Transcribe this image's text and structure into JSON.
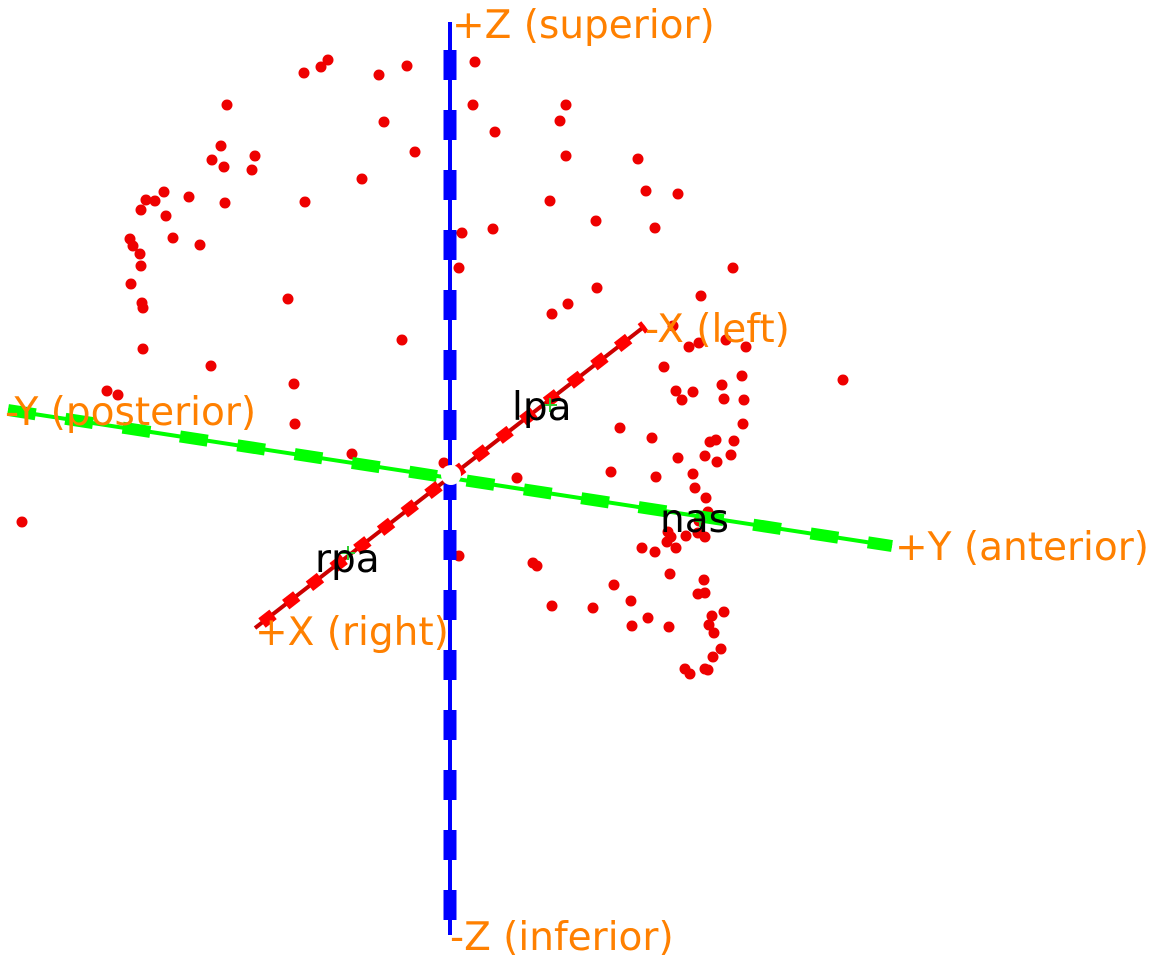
{
  "axes": {
    "z_pos": "+Z (superior)",
    "z_neg": "-Z (inferior)",
    "x_neg": "-X (left)",
    "x_pos": "+X (right)",
    "y_neg": "-Y (posterior)",
    "y_pos": "+Y (anterior)"
  },
  "fiducials": {
    "lpa": "lpa",
    "rpa": "rpa",
    "nas": "nas"
  }
}
